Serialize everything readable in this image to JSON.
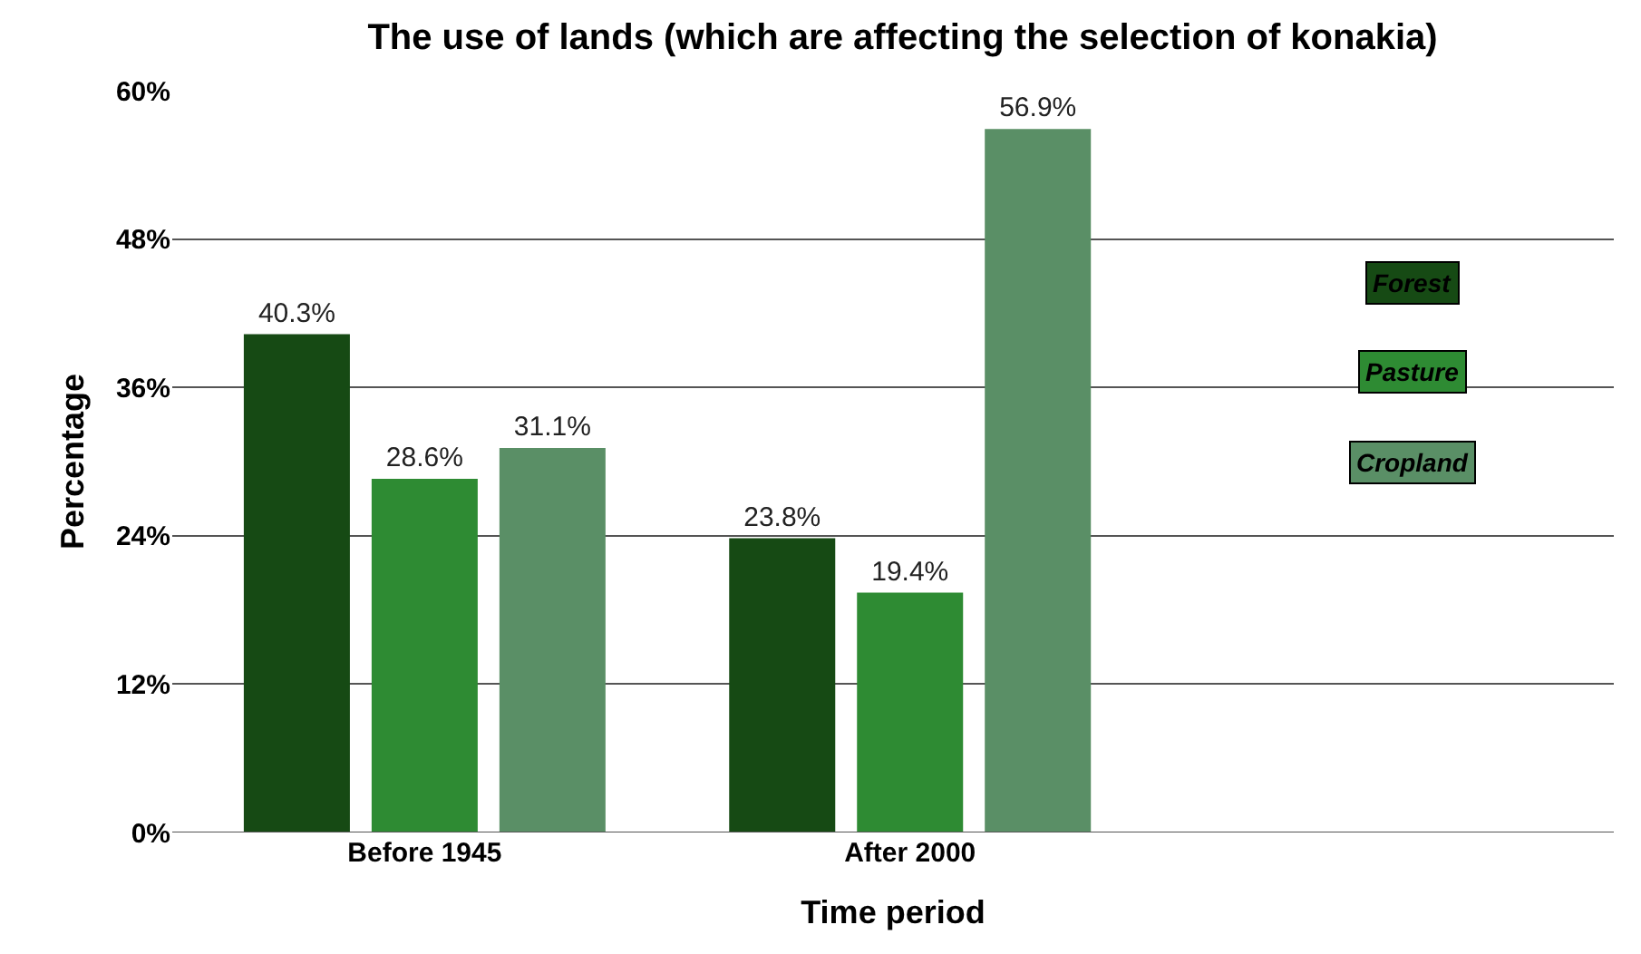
{
  "chart_data": {
    "type": "bar",
    "title": "The use of lands (which are affecting the selection of konakia)",
    "xlabel": "Time period",
    "ylabel": "Percentage",
    "categories": [
      "Before 1945",
      "After 2000"
    ],
    "series": [
      {
        "name": "Forest",
        "color": "#164a14",
        "values": [
          40.3,
          23.8
        ],
        "value_labels": [
          "40.3%",
          "23.8%"
        ]
      },
      {
        "name": "Pasture",
        "color": "#2e8b33",
        "values": [
          28.6,
          19.4
        ],
        "value_labels": [
          "28.6%",
          "19.4%"
        ]
      },
      {
        "name": "Cropland",
        "color": "#5a8f66",
        "values": [
          31.1,
          56.9
        ],
        "value_labels": [
          "31.1%",
          "56.9%"
        ]
      }
    ],
    "ylim": [
      0,
      60
    ],
    "yticks": [
      {
        "value": 0,
        "label": "0%"
      },
      {
        "value": 12,
        "label": "12%"
      },
      {
        "value": 24,
        "label": "24%"
      },
      {
        "value": 36,
        "label": "36%"
      },
      {
        "value": 48,
        "label": "48%"
      },
      {
        "value": 60,
        "label": "60%"
      }
    ],
    "grid": "y",
    "legend": "right"
  }
}
